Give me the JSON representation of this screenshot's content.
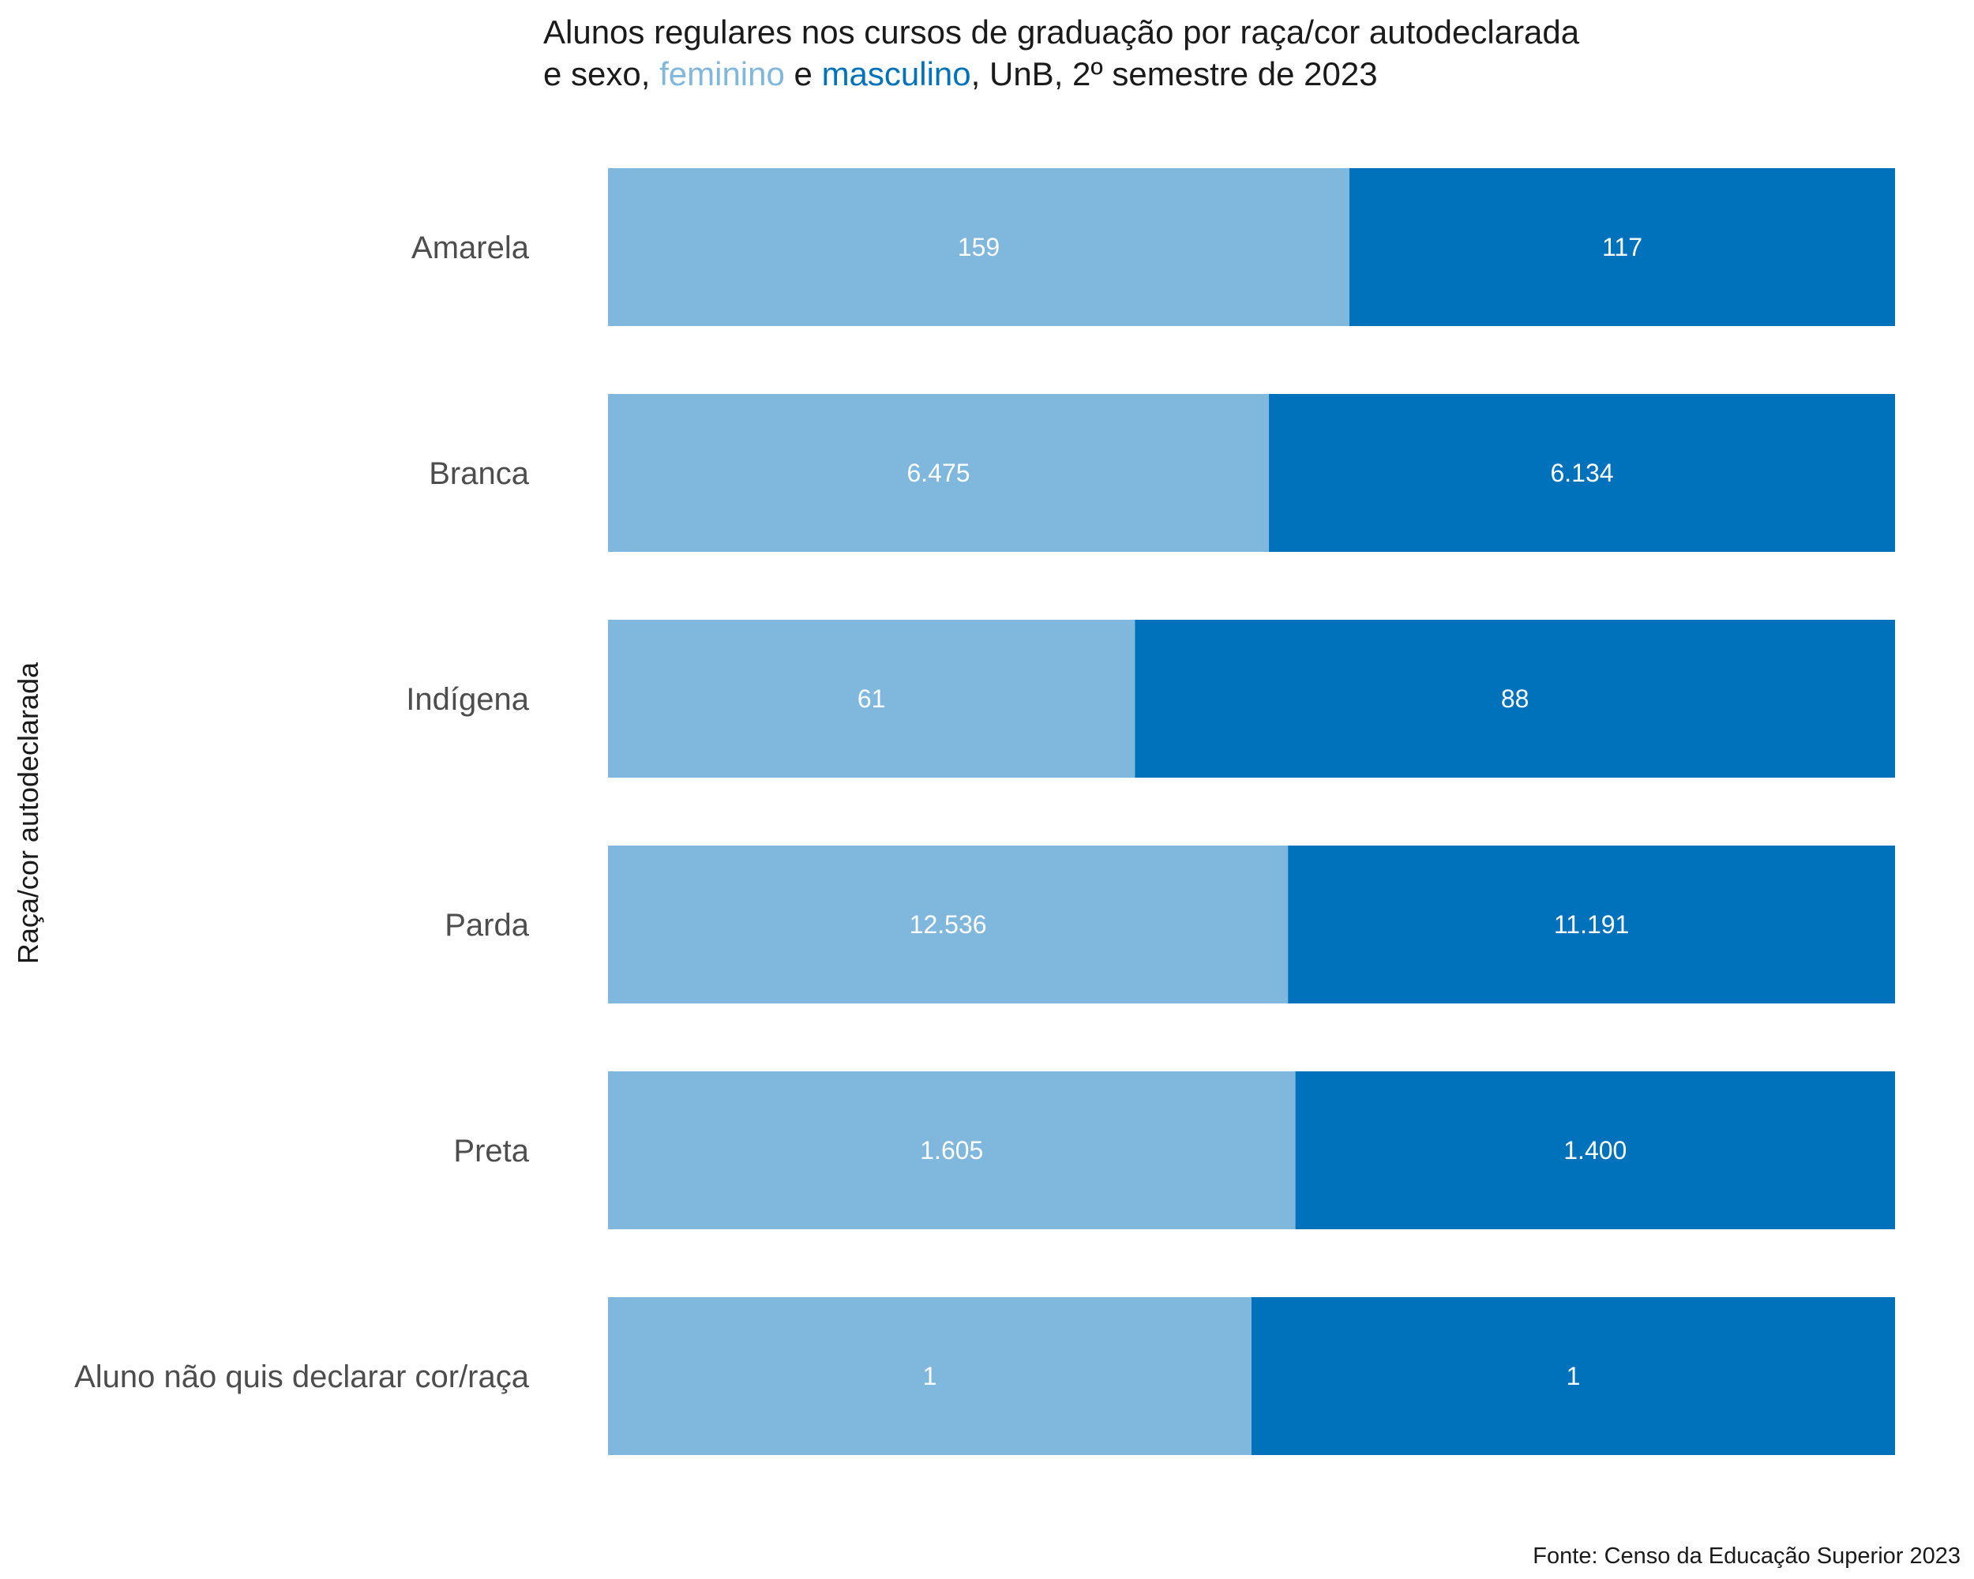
{
  "chart_data": {
    "type": "bar",
    "orientation": "horizontal",
    "stacked": "percent",
    "title_line1": "Alunos regulares nos cursos de graduação por raça/cor autodeclarada",
    "title_line2_prefix": "e sexo, ",
    "title_line2_series1": "feminino",
    "title_line2_mid": " e ",
    "title_line2_series2": "masculino",
    "title_line2_suffix": ", UnB, 2º semestre de 2023",
    "ylabel": "Raça/cor autodeclarada",
    "caption": "Fonte: Censo da Educação Superior 2023",
    "categories": [
      "Amarela",
      "Branca",
      "Indígena",
      "Parda",
      "Preta",
      "Aluno não quis declarar cor/raça"
    ],
    "series": [
      {
        "name": "feminino",
        "color": "#80b7dc",
        "values": [
          159,
          6475,
          61,
          12536,
          1605,
          1
        ],
        "labels": [
          "159",
          "6.475",
          "61",
          "12.536",
          "1.605",
          "1"
        ]
      },
      {
        "name": "masculino",
        "color": "#0072bc",
        "values": [
          117,
          6134,
          88,
          11191,
          1400,
          1
        ],
        "labels": [
          "117",
          "6.134",
          "88",
          "11.191",
          "1.400",
          "1"
        ]
      }
    ],
    "grid": false,
    "legend": "none"
  }
}
